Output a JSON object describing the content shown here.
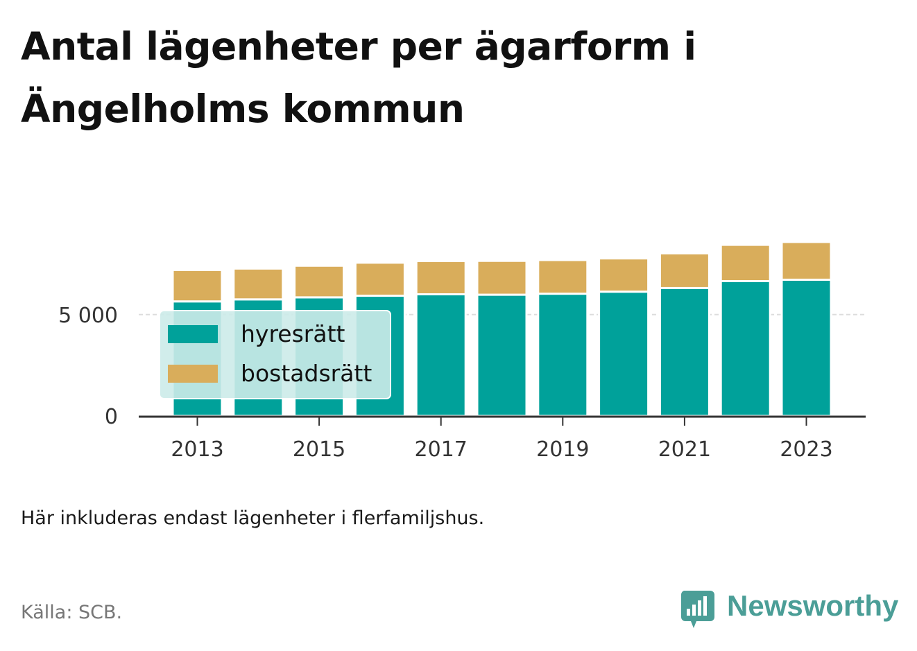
{
  "title": "Antal lägenheter per ägarform i Ängelholms kommun",
  "caption": "Här inkluderas endast lägenheter i flerfamiljshus.",
  "source": "Källa: SCB.",
  "brand": "Newsworthy",
  "colors": {
    "hyresratt": "#00a19a",
    "bostadsratt": "#d9ad5b",
    "legend_bg": "#ccebe9",
    "brand": "#4b9e97"
  },
  "chart_data": {
    "type": "bar",
    "stacked": true,
    "categories": [
      "2013",
      "2014",
      "2015",
      "2016",
      "2017",
      "2018",
      "2019",
      "2020",
      "2021",
      "2022",
      "2023"
    ],
    "series": [
      {
        "name": "hyresrätt",
        "values": [
          5650,
          5750,
          5850,
          5930,
          6000,
          5980,
          6030,
          6130,
          6310,
          6650,
          6720
        ]
      },
      {
        "name": "bostadsrätt",
        "values": [
          1550,
          1520,
          1560,
          1630,
          1640,
          1670,
          1660,
          1640,
          1710,
          1790,
          1860
        ]
      }
    ],
    "xticks": [
      "2013",
      "2015",
      "2017",
      "2019",
      "2021",
      "2023"
    ],
    "yticks": [
      0,
      5000
    ],
    "ytick_labels": [
      "0",
      "5 000"
    ],
    "ylim": [
      0,
      8700
    ],
    "grid": true,
    "legend_position": "bottom-left"
  }
}
